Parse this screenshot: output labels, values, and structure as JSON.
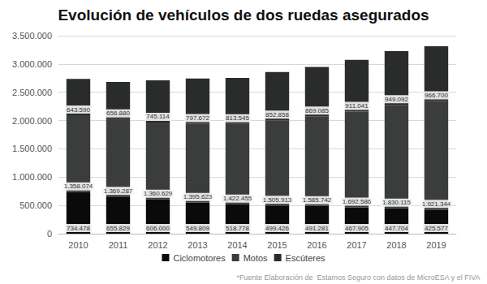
{
  "chart_data": {
    "type": "bar",
    "title": "Evolución de vehículos de dos ruedas asegurados",
    "annotations": [
      "*Fuente Elaboración de  Estamos Seguro con datos de MicroESA y el FIVA"
    ],
    "categories": [
      "2010",
      "2011",
      "2012",
      "2013",
      "2014",
      "2015",
      "2016",
      "2017",
      "2018",
      "2019"
    ],
    "series": [
      {
        "name": "Ciclomotores",
        "color": "#0a0a0a",
        "values": [
          734478,
          655829,
          606000,
          549809,
          518778,
          499426,
          491281,
          467905,
          447704,
          425577
        ],
        "value_labels": [
          "734.478",
          "655.829",
          "606.000",
          "549.809",
          "518.778",
          "499.426",
          "491.281",
          "467.905",
          "447.704",
          "425.577"
        ]
      },
      {
        "name": "Motos",
        "color": "#3a3d3b",
        "values": [
          1358074,
          1369287,
          1360629,
          1395623,
          1422455,
          1505913,
          1585742,
          1692586,
          1830115,
          1921344
        ],
        "value_labels": [
          "1.358.074",
          "1.369.287",
          "1.360.629",
          "1.395.623",
          "1.422.455",
          "1.505.913",
          "1.585.742",
          "1.692.586",
          "1.830.115",
          "1.921.344"
        ]
      },
      {
        "name": "Escúteres",
        "color": "#2a2c2b",
        "values": [
          643590,
          656880,
          745114,
          797672,
          813545,
          852858,
          869085,
          911041,
          949092,
          966700
        ],
        "value_labels": [
          "643.590",
          "656.880",
          "745.114",
          "797.672",
          "813.545",
          "852.858",
          "869.085",
          "911.041",
          "949.092",
          "966.700"
        ]
      }
    ],
    "ylim": [
      0,
      3500000
    ],
    "yticks": [
      0,
      {
        "value": 500000,
        "label": "500.000"
      },
      {
        "value": 1000000,
        "label": "1.000.000"
      },
      {
        "value": 1500000,
        "label": "1.500.000"
      },
      {
        "value": 2000000,
        "label": "2.000.000"
      },
      {
        "value": 2500000,
        "label": "2.500.000"
      },
      {
        "value": 3000000,
        "label": "3.000.000"
      },
      {
        "value": 3500000,
        "label": "3.500.000"
      }
    ],
    "stacked": true,
    "data_labels": true,
    "grid": true,
    "legend": "bottom"
  }
}
